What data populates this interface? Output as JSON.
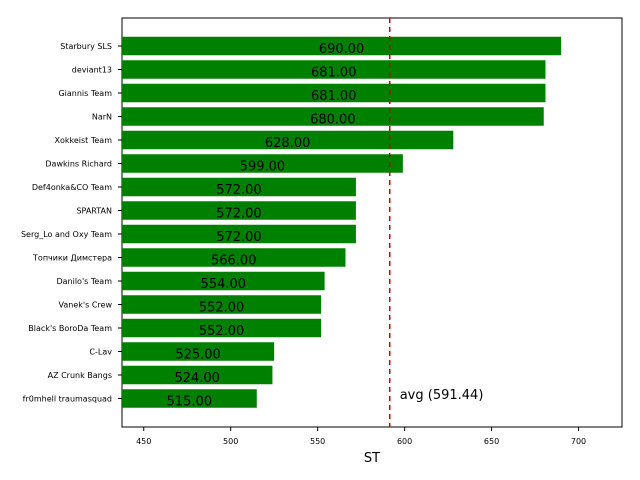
{
  "chart_data": {
    "type": "bar",
    "orientation": "horizontal",
    "xlabel": "ST",
    "ylabel": "",
    "xlim": [
      437.5,
      725
    ],
    "xticks": [
      450,
      500,
      550,
      600,
      650,
      700
    ],
    "grid": false,
    "categories": [
      "Starbury SLS",
      "deviant13",
      "Giannis Team",
      "NarN",
      "Xokkeist Team",
      "Dawkins Richard",
      "Def4onka&CO Team",
      "SPARTAN",
      "Serg_Lo and Oxy Team",
      "Топчики Димстера",
      "Danilo's Team",
      "Vanek's Crew",
      "Black's BoroDa Team",
      "C-Lav",
      "AZ Crunk Bangs",
      "fr0mhell traumasquad"
    ],
    "values": [
      690,
      681,
      681,
      680,
      628,
      599,
      572,
      572,
      572,
      566,
      554,
      552,
      552,
      525,
      524,
      515
    ],
    "value_labels": [
      "690.00",
      "681.00",
      "681.00",
      "680.00",
      "628.00",
      "599.00",
      "572.00",
      "572.00",
      "572.00",
      "566.00",
      "554.00",
      "552.00",
      "552.00",
      "525.00",
      "524.00",
      "515.00"
    ],
    "bar_color": "#008000",
    "reference_line": {
      "value": 591.44,
      "label": "avg (591.44)",
      "color": "#cc0000",
      "style": "dashed"
    }
  }
}
